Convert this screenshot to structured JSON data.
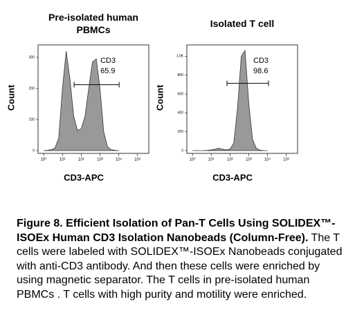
{
  "chart_data": [
    {
      "type": "area",
      "title": "Pre-isolated human PBMCs",
      "xlabel": "CD3-APC",
      "ylabel": "Count",
      "x": [
        0,
        0.2,
        0.4,
        0.6,
        0.8,
        1.0,
        1.2,
        1.4,
        1.6,
        1.8,
        2.0,
        2.2,
        2.4,
        2.6,
        2.8,
        3.0,
        3.2,
        3.4,
        3.6,
        3.8,
        4.0
      ],
      "values": [
        0,
        1,
        3,
        8,
        40,
        200,
        320,
        230,
        110,
        65,
        70,
        110,
        200,
        285,
        295,
        200,
        60,
        12,
        3,
        1,
        0
      ],
      "color": "#999999",
      "xlim": [
        -0.3,
        5.6
      ],
      "ylim": [
        0,
        340
      ],
      "xticks": [
        {
          "value": 0,
          "label": "10⁰"
        },
        {
          "value": 1,
          "label": "10¹"
        },
        {
          "value": 2,
          "label": "10²"
        },
        {
          "value": 3,
          "label": "10³"
        },
        {
          "value": 4,
          "label": "10⁴"
        },
        {
          "value": 5,
          "label": "10⁵"
        }
      ],
      "yticks": [
        0,
        100,
        200,
        300
      ],
      "gate": {
        "x": [
          1.62,
          4.02
        ],
        "y": 212,
        "label": "CD3",
        "value": 65.9
      }
    },
    {
      "type": "area",
      "title": "Isolated T cell",
      "xlabel": "CD3-APC",
      "ylabel": "Count",
      "x": [
        0,
        0.2,
        0.4,
        0.6,
        0.8,
        1.0,
        1.2,
        1.4,
        1.6,
        1.8,
        2.0,
        2.2,
        2.4,
        2.6,
        2.8,
        3.0,
        3.2,
        3.4,
        3.6,
        3.8,
        4.0
      ],
      "values": [
        0,
        0,
        0,
        1,
        3,
        8,
        15,
        25,
        15,
        8,
        15,
        80,
        450,
        1000,
        1060,
        500,
        120,
        25,
        5,
        1,
        0
      ],
      "color": "#999999",
      "xlim": [
        -0.3,
        5.6
      ],
      "ylim": [
        0,
        1120
      ],
      "xticks": [
        {
          "value": 0,
          "label": "10⁰"
        },
        {
          "value": 1,
          "label": "10¹"
        },
        {
          "value": 2,
          "label": "10²"
        },
        {
          "value": 3,
          "label": "10³"
        },
        {
          "value": 4,
          "label": "10⁴"
        },
        {
          "value": 5,
          "label": "10⁵"
        }
      ],
      "yticks": [
        0,
        200,
        400,
        600,
        800,
        {
          "value": 1000,
          "label": "1.0K"
        }
      ],
      "gate": {
        "x": [
          1.84,
          4.05
        ],
        "y": 713,
        "label": "CD3",
        "value": 98.6
      }
    }
  ],
  "caption": {
    "bold": "Figure 8. Efficient Isolation of Pan-T Cells Using SOLIDEX™-ISOEx Human CD3 Isolation Nanobeads (Column-Free).",
    "text": "The T cells were labeled with SOLIDEX™-ISOEx Nanobeads conjugated with anti-CD3 antibody. And then these cells were enriched by using magnetic separator. The T cells in pre-isolated human PBMCs . T cells with high purity and motility were enriched."
  }
}
